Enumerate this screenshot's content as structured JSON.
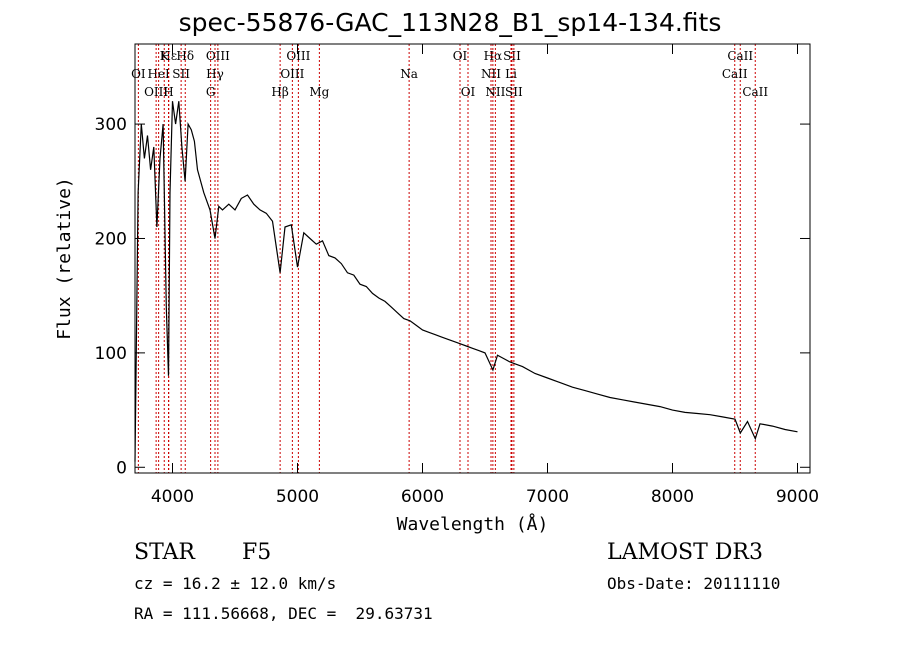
{
  "chart_data": {
    "type": "line",
    "title": "spec-55876-GAC_113N28_B1_sp14-134.fits",
    "xlabel": "Wavelength (Å)",
    "ylabel": "Flux (relative)",
    "xlim": [
      3700,
      9100
    ],
    "ylim": [
      -5,
      370
    ],
    "xticks": [
      4000,
      5000,
      6000,
      7000,
      8000,
      9000
    ],
    "xtick_labels": [
      "4000",
      "5000",
      "6000",
      "7000",
      "8000",
      "9000"
    ],
    "yticks": [
      0,
      100,
      200,
      300
    ],
    "ytick_labels": [
      "0",
      "100",
      "200",
      "300"
    ],
    "series": [
      {
        "name": "flux",
        "x": [
          3700,
          3725,
          3750,
          3775,
          3800,
          3825,
          3850,
          3875,
          3900,
          3925,
          3950,
          3968,
          3980,
          4000,
          4025,
          4050,
          4075,
          4101,
          4125,
          4150,
          4175,
          4200,
          4250,
          4300,
          4340,
          4370,
          4400,
          4450,
          4500,
          4550,
          4600,
          4650,
          4700,
          4750,
          4800,
          4861,
          4900,
          4950,
          5000,
          5050,
          5100,
          5150,
          5200,
          5250,
          5300,
          5350,
          5400,
          5450,
          5500,
          5550,
          5600,
          5650,
          5700,
          5750,
          5800,
          5850,
          5900,
          5950,
          6000,
          6050,
          6100,
          6150,
          6200,
          6250,
          6300,
          6350,
          6400,
          6450,
          6500,
          6563,
          6600,
          6650,
          6700,
          6750,
          6800,
          6900,
          7000,
          7100,
          7200,
          7300,
          7400,
          7500,
          7600,
          7700,
          7800,
          7900,
          8000,
          8100,
          8200,
          8300,
          8400,
          8500,
          8542,
          8600,
          8662,
          8700,
          8800,
          8900,
          9000
        ],
        "values": [
          5,
          240,
          300,
          270,
          290,
          260,
          280,
          210,
          270,
          300,
          140,
          80,
          240,
          320,
          300,
          320,
          280,
          250,
          300,
          295,
          285,
          260,
          240,
          225,
          200,
          228,
          225,
          230,
          225,
          235,
          238,
          230,
          225,
          222,
          215,
          170,
          210,
          212,
          175,
          205,
          200,
          195,
          198,
          185,
          183,
          178,
          170,
          168,
          160,
          158,
          152,
          148,
          145,
          140,
          135,
          130,
          128,
          124,
          120,
          118,
          116,
          114,
          112,
          110,
          108,
          106,
          104,
          102,
          100,
          85,
          98,
          95,
          92,
          90,
          88,
          82,
          78,
          74,
          70,
          67,
          64,
          61,
          59,
          57,
          55,
          53,
          50,
          48,
          47,
          46,
          44,
          42,
          30,
          40,
          25,
          38,
          36,
          33,
          31
        ]
      }
    ],
    "line_markers": [
      {
        "label": "Hε",
        "x": 3970,
        "row": 0
      },
      {
        "label": "Hδ",
        "x": 4102,
        "row": 0
      },
      {
        "label": "K",
        "x": 3934,
        "row": 0
      },
      {
        "label": "OIII",
        "x": 4363,
        "row": 0
      },
      {
        "label": "OIII",
        "x": 5007,
        "row": 0
      },
      {
        "label": "OI",
        "x": 6300,
        "row": 0
      },
      {
        "label": "Hα",
        "x": 6563,
        "row": 0
      },
      {
        "label": "SII",
        "x": 6716,
        "row": 0
      },
      {
        "label": "CaII",
        "x": 8542,
        "row": 0
      },
      {
        "label": "OI",
        "x": 3727,
        "row": 1
      },
      {
        "label": "HeI",
        "x": 3889,
        "row": 1
      },
      {
        "label": "SII",
        "x": 4069,
        "row": 1
      },
      {
        "label": "Hγ",
        "x": 4340,
        "row": 1
      },
      {
        "label": "OIII",
        "x": 4959,
        "row": 1
      },
      {
        "label": "Na",
        "x": 5893,
        "row": 1
      },
      {
        "label": "NII",
        "x": 6548,
        "row": 1
      },
      {
        "label": "Li",
        "x": 6708,
        "row": 1
      },
      {
        "label": "CaII",
        "x": 8498,
        "row": 1
      },
      {
        "label": "OIII",
        "x": 3869,
        "row": 2
      },
      {
        "label": "H",
        "x": 3968,
        "row": 2
      },
      {
        "label": "G",
        "x": 4305,
        "row": 2
      },
      {
        "label": "Hβ",
        "x": 4861,
        "row": 2
      },
      {
        "label": "Mg",
        "x": 5175,
        "row": 2
      },
      {
        "label": "OI",
        "x": 6364,
        "row": 2
      },
      {
        "label": "NII",
        "x": 6583,
        "row": 2
      },
      {
        "label": "SII",
        "x": 6731,
        "row": 2
      },
      {
        "label": "CaII",
        "x": 8662,
        "row": 2
      }
    ],
    "colors": {
      "spectrum": "#000000",
      "marker_line": "#cc0000",
      "axes": "#000000"
    }
  },
  "footer": {
    "object_class": "STAR",
    "subclass": "F5",
    "survey": "LAMOST DR3",
    "redshift": "cz = 16.2 ± 12.0 km/s",
    "obs_date": "Obs-Date: 20111110",
    "coords": "RA = 111.56668, DEC =  29.63731"
  }
}
